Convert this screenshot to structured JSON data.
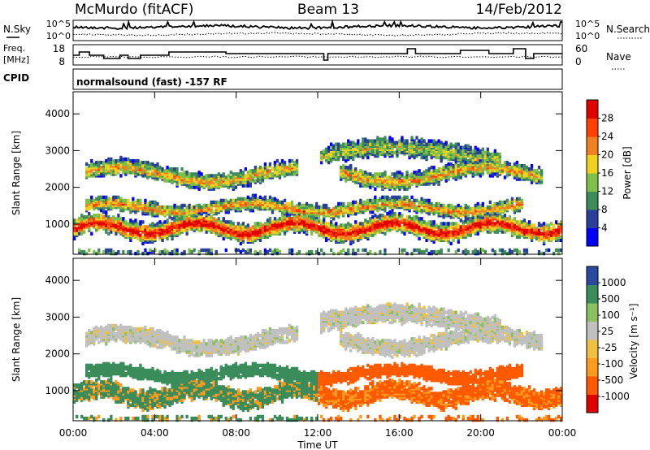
{
  "header": {
    "station": "McMurdo (fitACF)",
    "beam": "Beam 13",
    "date": "14/Feb/2012"
  },
  "top_panels": {
    "nsky_label": "N.Sky",
    "nsearch_label": "N.Search",
    "nsky_ticks": [
      "10^5",
      "10^0"
    ],
    "nsearch_ticks": [
      "10^5",
      "10^0"
    ],
    "freq_label": "Freq.",
    "freq_unit": "[MHz]",
    "freq_ticks": [
      "18",
      "8"
    ],
    "nave_label": "Nave",
    "nave_ticks": [
      "60",
      "0"
    ],
    "cpid_label": "CPID",
    "cpid_value": "normalsound (fast) -157 RF"
  },
  "colors": {
    "power": [
      "#0000ff",
      "#2a3f9a",
      "#3d8c5a",
      "#7fc04a",
      "#f0d020",
      "#f08020",
      "#ff4000",
      "#e00000"
    ],
    "velocity": [
      "#e00000",
      "#ff5a00",
      "#ff9a20",
      "#f0c040",
      "#c0c0c0",
      "#8ac060",
      "#3a8c5a",
      "#2a4aa0"
    ]
  },
  "chart_data": [
    {
      "type": "heatmap",
      "name": "power-panel",
      "ylabel": "Slant Range [km]",
      "ylim": [
        180,
        4600
      ],
      "yticks": [
        1000,
        2000,
        3000,
        4000
      ],
      "xlim_hours": [
        0,
        24
      ],
      "colorbar": {
        "label": "Power [dB]",
        "ticks": [
          "4",
          "8",
          "12",
          "16",
          "20",
          "24",
          "28"
        ],
        "range": [
          0,
          32
        ]
      }
    },
    {
      "type": "heatmap",
      "name": "velocity-panel",
      "ylabel": "Slant Range [km]",
      "ylim": [
        180,
        4600
      ],
      "yticks": [
        1000,
        2000,
        3000,
        4000
      ],
      "xlim_hours": [
        0,
        24
      ],
      "colorbar": {
        "label": "Velocity [m s⁻¹]",
        "ticks": [
          "-1000",
          "-500",
          "-100",
          "-25",
          "25",
          "100",
          "500",
          "1000"
        ]
      }
    }
  ],
  "x_axis": {
    "ticks": [
      "00:00",
      "04:00",
      "08:00",
      "12:00",
      "16:00",
      "20:00",
      "00:00"
    ],
    "label": "Time UT"
  }
}
